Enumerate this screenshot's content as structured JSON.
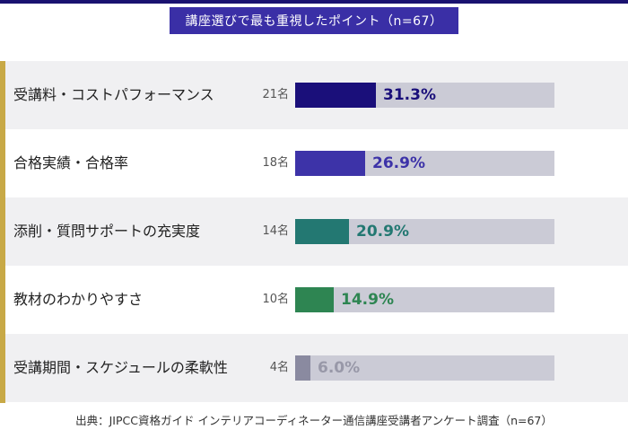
{
  "title": "講座選びで最も重視したポイント（n=67）",
  "chart_data": {
    "type": "bar",
    "orientation": "horizontal",
    "title": "講座選びで最も重視したポイント（n=67）",
    "xlim": [
      0,
      100
    ],
    "categories": [
      "受講料・コストパフォーマンス",
      "合格実績・合格率",
      "添削・質問サポートの充実度",
      "教材のわかりやすさ",
      "受講期間・スケジュールの柔軟性"
    ],
    "counts": [
      "21名",
      "18名",
      "14名",
      "10名",
      "4名"
    ],
    "values": [
      31.3,
      26.9,
      20.9,
      14.9,
      6.0
    ],
    "value_labels": [
      "31.3%",
      "26.9%",
      "20.9%",
      "14.9%",
      "6.0%"
    ],
    "bar_colors": [
      "#1a0f7a",
      "#3d33a8",
      "#237872",
      "#2e8552",
      "#8a8aa0"
    ],
    "label_colors": [
      "#1a0f7a",
      "#3d33a8",
      "#237872",
      "#2e8552",
      "#9898a8"
    ],
    "track_color": "#cbcbd6"
  },
  "source": "出典：JIPCC資格ガイド インテリアコーディネーター通信講座受講者アンケート調査（n=67）"
}
